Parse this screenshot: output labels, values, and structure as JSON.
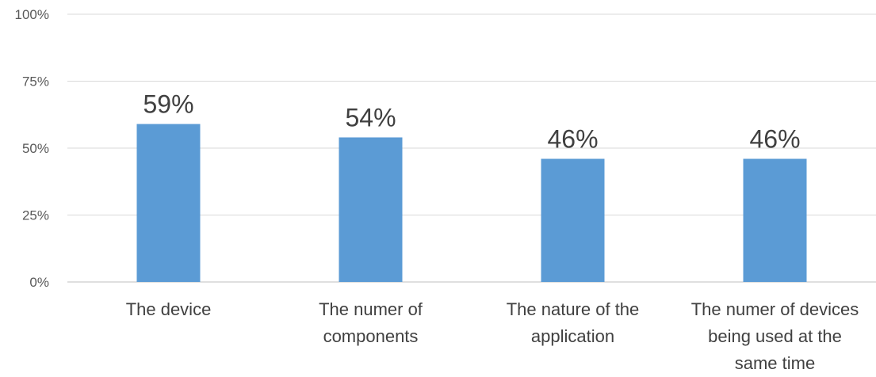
{
  "chart_data": {
    "type": "bar",
    "categories": [
      [
        "The device"
      ],
      [
        "The numer of",
        "components"
      ],
      [
        "The nature of the",
        "application"
      ],
      [
        "The numer of devices",
        "being used at the",
        "same time"
      ]
    ],
    "values": [
      59,
      54,
      46,
      46
    ],
    "data_labels": [
      "59%",
      "54%",
      "46%",
      "46%"
    ],
    "ylim": [
      0,
      100
    ],
    "yticks": [
      0,
      25,
      50,
      75,
      100
    ],
    "ytick_labels": [
      "0%",
      "25%",
      "50%",
      "75%",
      "100%"
    ],
    "grid": true,
    "legend": "none",
    "bar_color": "#5b9bd5"
  }
}
